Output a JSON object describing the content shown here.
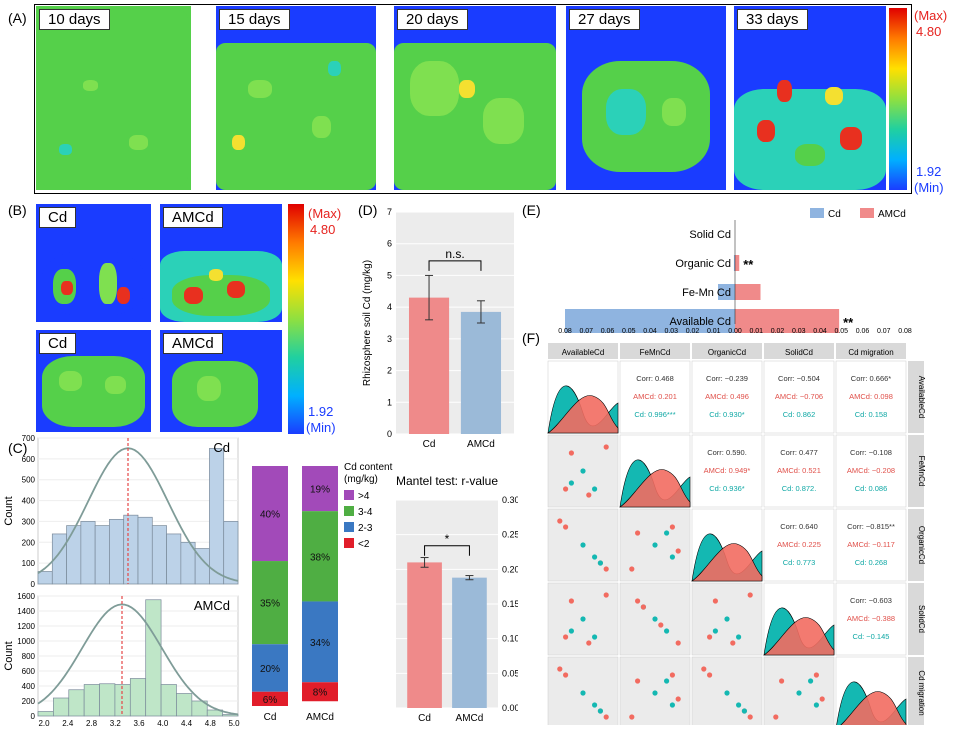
{
  "panels": {
    "A": "(A)",
    "B": "(B)",
    "C": "(C)",
    "D": "(D)",
    "E": "(E)",
    "F": "(F)"
  },
  "colors": {
    "low": "#1a3cff",
    "high": "#e6231f",
    "green": "#5ad54a",
    "red_bar": "#ef8a8a",
    "blue_bar": "#9bbad8",
    "cd_fill": "#f26b60",
    "amcd_fill": "#14b8b2"
  },
  "panel_a": {
    "images": [
      "10 days",
      "15 days",
      "20 days",
      "27 days",
      "33 days"
    ],
    "scale": {
      "max_label": "(Max)",
      "max_value": "4.80",
      "min_value": "1.92",
      "min_label": "(Min)"
    }
  },
  "panel_b": {
    "images": [
      "Cd",
      "AMCd",
      "Cd",
      "AMCd"
    ],
    "scale": {
      "max_label": "(Max)",
      "max_value": "4.80",
      "min_value": "1.92",
      "min_label": "(Min)"
    }
  },
  "chart_data": [
    {
      "id": "C_hist_cd",
      "type": "bar",
      "label": "Cd",
      "ylabel": "Count",
      "ylim": [
        0,
        700
      ],
      "yticks": [
        "0",
        "100",
        "200",
        "300",
        "400",
        "500",
        "600",
        "700"
      ],
      "values": [
        60,
        240,
        280,
        300,
        280,
        310,
        330,
        320,
        280,
        240,
        200,
        170,
        650,
        300
      ]
    },
    {
      "id": "C_hist_amcd",
      "type": "bar",
      "label": "AMCd",
      "ylabel": "Count",
      "ylim": [
        0,
        1600
      ],
      "yticks": [
        "0",
        "200",
        "400",
        "600",
        "800",
        "1000",
        "1200",
        "1400",
        "1600"
      ],
      "xticks": [
        "2.0",
        "2.4",
        "2.8",
        "3.2",
        "3.6",
        "4.0",
        "4.4",
        "4.8",
        "5.0"
      ],
      "values": [
        60,
        240,
        350,
        420,
        430,
        420,
        500,
        1550,
        420,
        300,
        200,
        80,
        20
      ]
    },
    {
      "id": "C_stack",
      "type": "bar",
      "categories": [
        "Cd",
        "AMCd"
      ],
      "legend_title": "Cd content (mg/kg)",
      "legend": [
        ">4",
        "3-4",
        "2-3",
        "<2"
      ],
      "series": [
        {
          "name": ">4",
          "values": [
            40,
            19
          ],
          "labels": [
            "40%",
            "19%"
          ],
          "color": "#a24ab9"
        },
        {
          "name": "3-4",
          "values": [
            35,
            38
          ],
          "labels": [
            "35%",
            "38%"
          ],
          "color": "#4fae43"
        },
        {
          "name": "2-3",
          "values": [
            20,
            34
          ],
          "labels": [
            "20%",
            "34%"
          ],
          "color": "#3a78c2"
        },
        {
          "name": "<2",
          "values": [
            6,
            8
          ],
          "labels": [
            "6%",
            "8%"
          ],
          "color": "#e11d2a"
        }
      ]
    },
    {
      "id": "D_top",
      "type": "bar",
      "ylabel": "Rhizosphere soil Cd (mg/kg)",
      "ylim": [
        0,
        7
      ],
      "yticks": [
        "0",
        "1",
        "2",
        "3",
        "4",
        "5",
        "6",
        "7"
      ],
      "categories": [
        "Cd",
        "AMCd"
      ],
      "values": [
        4.3,
        3.85
      ],
      "errors": [
        0.7,
        0.35
      ],
      "annotation": "n.s."
    },
    {
      "id": "D_bottom",
      "type": "bar",
      "title": "Mantel test: r-value",
      "ylim": [
        0,
        0.3
      ],
      "yticks": [
        "0.00",
        "0.05",
        "0.10",
        "0.15",
        "0.20",
        "0.25",
        "0.30"
      ],
      "categories": [
        "Cd",
        "AMCd"
      ],
      "values": [
        0.21,
        0.188
      ],
      "errors": [
        0.007,
        0.003
      ],
      "annotation": "*"
    },
    {
      "id": "E",
      "type": "bar",
      "legend": [
        "Cd",
        "AMCd"
      ],
      "categories": [
        "Solid Cd",
        "Organic Cd",
        "Fe-Mn Cd",
        "Available Cd"
      ],
      "cd": [
        0,
        0.0005,
        0.008,
        0.08
      ],
      "amcd": [
        0,
        0.002,
        0.012,
        0.049
      ],
      "sig": [
        "",
        "**",
        "",
        "**"
      ],
      "xticks_left": [
        "0.08",
        "0.07",
        "0.06",
        "0.05",
        "0.04",
        "0.03",
        "0.02",
        "0.01",
        "0.00"
      ],
      "xticks_right": [
        "0.01",
        "0.02",
        "0.03",
        "0.04",
        "0.05",
        "0.06",
        "0.07",
        "0.08"
      ]
    },
    {
      "id": "F",
      "type": "table",
      "columns": [
        "AvailableCd",
        "FeMnCd",
        "OrganicCd",
        "SolidCd",
        "Cd migration"
      ],
      "cells": {
        "r0c1": [
          "Corr: 0.468",
          "AMCd: 0.201",
          "Cd: 0.996***"
        ],
        "r0c2": [
          "Corr: −0.239",
          "AMCd: 0.496",
          "Cd: 0.930*"
        ],
        "r0c3": [
          "Corr: −0.504",
          "AMCd: −0.706",
          "Cd: 0.862"
        ],
        "r0c4": [
          "Corr: 0.666*",
          "AMCd: 0.098",
          "Cd: 0.158"
        ],
        "r1c2": [
          "Corr: 0.590.",
          "AMCd: 0.949*",
          "Cd: 0.936*"
        ],
        "r1c3": [
          "Corr: 0.477",
          "AMCd: 0.521",
          "Cd: 0.872."
        ],
        "r1c4": [
          "Corr: −0.108",
          "AMCd: −0.208",
          "Cd: 0.086"
        ],
        "r2c3": [
          "Corr: 0.640",
          "AMCd: 0.225",
          "Cd: 0.773"
        ],
        "r2c4": [
          "Corr: −0.815**",
          "AMCd: −0.117",
          "Cd: 0.268"
        ],
        "r3c4": [
          "Corr: −0.603",
          "AMCd: −0.388",
          "Cd: −0.145"
        ]
      }
    }
  ]
}
